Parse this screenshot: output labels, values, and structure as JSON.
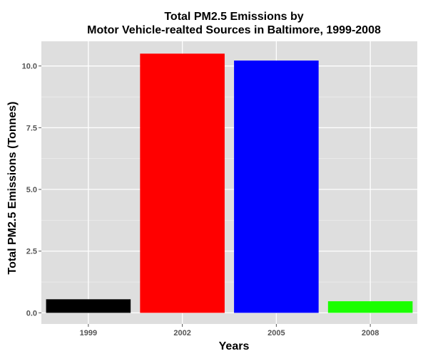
{
  "chart_data": {
    "type": "bar",
    "title": "Total PM2.5 Emissions by",
    "subtitle": "Motor Vehicle-realted Sources in Baltimore, 1999-2008",
    "xlabel": "Years",
    "ylabel": "Total PM2.5 Emissions (Tonnes)",
    "categories": [
      "1999",
      "2002",
      "2005",
      "2008"
    ],
    "values": [
      0.55,
      10.5,
      10.22,
      0.47
    ],
    "colors": [
      "#000000",
      "#ff0000",
      "#0000ff",
      "#1aff00"
    ],
    "ylim": [
      -0.45,
      11.0
    ],
    "yticks": [
      0.0,
      2.5,
      5.0,
      7.5,
      10.0
    ],
    "ytick_labels": [
      "0.0",
      "2.5",
      "5.0",
      "7.5",
      "10.0"
    ],
    "grid": true,
    "legend": "none",
    "panel_background": "#dedede",
    "grid_color": "#ffffff"
  }
}
